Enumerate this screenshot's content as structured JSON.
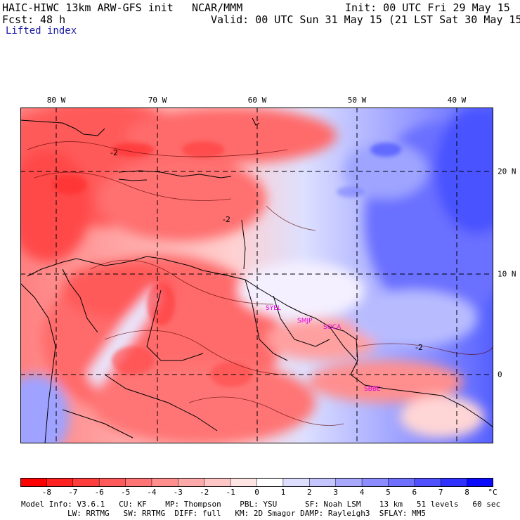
{
  "header": {
    "model_title": "HAIC-HIWC 13km ARW-GFS init",
    "org": "NCAR/MMM",
    "init": "Init: 00 UTC Fri 29 May 15",
    "fcst_label": "Fcst:",
    "fcst_value": "48 h",
    "valid": "Valid: 00 UTC Sun 31 May 15 (21 LST Sat 30 May 15)",
    "field_name": "Lifted index"
  },
  "map": {
    "lon_labels": [
      "80 W",
      "70 W",
      "60 W",
      "50 W",
      "40 W"
    ],
    "lat_labels": [
      "20 N",
      "10 N",
      "0"
    ],
    "stations": [
      "SYEL",
      "SMJP",
      "SOCA",
      "SBBE"
    ],
    "contour_label": "-2",
    "colors": {
      "strong_negative": "#ff3030",
      "neutral": "#ffffff",
      "strong_positive": "#1010ff",
      "station_label": "#e000e0"
    }
  },
  "colorbar": {
    "ticks": [
      "-8",
      "-7",
      "-6",
      "-5",
      "-4",
      "-3",
      "-2",
      "-1",
      "0",
      "1",
      "2",
      "3",
      "4",
      "5",
      "6",
      "7",
      "8"
    ],
    "unit": "°C",
    "colors": [
      "#ff0000",
      "#ff2020",
      "#ff3d3d",
      "#ff5a5a",
      "#ff7474",
      "#ff8f8f",
      "#ffaaaa",
      "#ffc6c6",
      "#ffe4e4",
      "#ffffff",
      "#dedeff",
      "#c4c4ff",
      "#a8a8ff",
      "#8c8cff",
      "#7070ff",
      "#5050ff",
      "#3030ff",
      "#0a0aff"
    ]
  },
  "footer": {
    "line1": "Model Info: V3.6.1   CU: KF    MP: Thompson    PBL: YSU      SF: Noah LSM    13 km   51 levels   60 sec",
    "line2": "LW: RRTMG   SW: RRTMG  DIFF: full   KM: 2D Smagor DAMP: Rayleigh3  SFLAY: MM5"
  }
}
